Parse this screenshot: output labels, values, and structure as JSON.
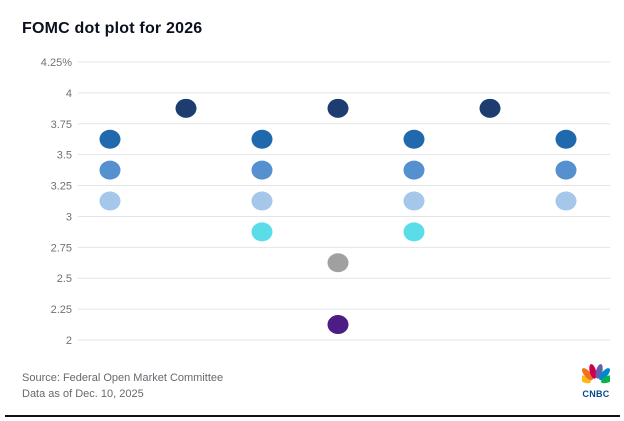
{
  "header": {
    "title": "FOMC dot plot for 2026"
  },
  "footer": {
    "source_line1": "Source: Federal Open Market Committee",
    "source_line2": "Data as of Dec. 10, 2025"
  },
  "logo": {
    "wordmark": "CNBC"
  },
  "colors": {
    "gridline": "#e4e4e6",
    "tick_label": "#6f7177",
    "title_text": "#0b0f1e",
    "source_text": "#67696e",
    "cnbc_wordmark": "#03498c",
    "peacock": [
      "#fdb913",
      "#f37021",
      "#cc004c",
      "#6460aa",
      "#0089d0",
      "#0db14b"
    ]
  },
  "chart_data": {
    "type": "scatter",
    "title": "FOMC dot plot for 2026",
    "xlabel": "",
    "ylabel": "",
    "ylim": [
      2,
      4.25
    ],
    "y_ticks": [
      "4.25%",
      "4",
      "3.75",
      "3.5",
      "3.25",
      "3",
      "2.75",
      "2.5",
      "2.25",
      "2"
    ],
    "grid": true,
    "legend": "none",
    "dot_layout": "dots sharing a rate are spread horizontally, centered on chart midline",
    "points": [
      {
        "rate": 3.875,
        "count": 3,
        "color": "#1d3d70"
      },
      {
        "rate": 3.625,
        "count": 4,
        "color": "#1f69ac"
      },
      {
        "rate": 3.375,
        "count": 4,
        "color": "#5590cf"
      },
      {
        "rate": 3.125,
        "count": 4,
        "color": "#a5c7e9"
      },
      {
        "rate": 2.875,
        "count": 2,
        "color": "#5bdde9"
      },
      {
        "rate": 2.625,
        "count": 1,
        "color": "#a1a0a0"
      },
      {
        "rate": 2.125,
        "count": 1,
        "color": "#4c1d85"
      }
    ]
  }
}
